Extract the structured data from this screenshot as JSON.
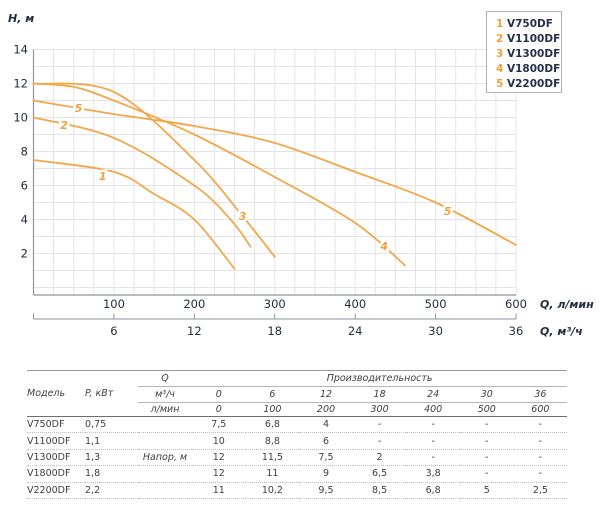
{
  "chart_data": {
    "type": "line",
    "ylabel": "H, м",
    "xlabel": "Q, л/мин",
    "x2label": "Q, м³/ч",
    "xlim": [
      0,
      600
    ],
    "ylim": [
      0,
      14
    ],
    "y_ticks": [
      2,
      4,
      6,
      8,
      10,
      12,
      14
    ],
    "x_ticks": [
      100,
      200,
      300,
      400,
      500,
      600
    ],
    "x2_ticks": [
      6,
      12,
      18,
      24,
      30,
      36
    ],
    "grid": {
      "on": true,
      "x_step_lmin": 25,
      "y_step_m": 1
    },
    "legend_position": "top-right",
    "colors": {
      "curve": "#f3a74b",
      "curve_label": "#f0a03e",
      "text": "#242e3f",
      "grid": "#e4e4e6",
      "axis": "#8f9499"
    },
    "series": [
      {
        "name": "V750DF",
        "curve_label": "1",
        "points": [
          [
            0,
            7.5
          ],
          [
            100,
            6.8
          ],
          [
            150,
            5.5
          ],
          [
            200,
            4
          ],
          [
            250,
            1.1
          ]
        ],
        "labels_at": [
          [
            86,
            6.55
          ]
        ]
      },
      {
        "name": "V1100DF",
        "curve_label": "2",
        "points": [
          [
            0,
            10
          ],
          [
            100,
            8.8
          ],
          [
            200,
            6
          ],
          [
            245,
            4
          ],
          [
            270,
            2.4
          ]
        ],
        "labels_at": [
          [
            38,
            9.55
          ]
        ]
      },
      {
        "name": "V1300DF",
        "curve_label": "3",
        "points": [
          [
            0,
            12
          ],
          [
            100,
            11.5
          ],
          [
            200,
            7.5
          ],
          [
            260,
            4.2
          ],
          [
            300,
            1.8
          ]
        ],
        "labels_at": [
          [
            260,
            4.2
          ]
        ]
      },
      {
        "name": "V1800DF",
        "curve_label": "4",
        "points": [
          [
            0,
            12
          ],
          [
            50,
            11.8
          ],
          [
            100,
            11
          ],
          [
            200,
            9
          ],
          [
            300,
            6.5
          ],
          [
            400,
            3.8
          ],
          [
            462,
            1.3
          ]
        ],
        "labels_at": [
          [
            436,
            2.45
          ]
        ]
      },
      {
        "name": "V2200DF",
        "curve_label": "5",
        "points": [
          [
            0,
            11
          ],
          [
            100,
            10.2
          ],
          [
            200,
            9.5
          ],
          [
            300,
            8.5
          ],
          [
            400,
            6.8
          ],
          [
            500,
            5
          ],
          [
            600,
            2.5
          ]
        ],
        "labels_at": [
          [
            56,
            10.55
          ],
          [
            515,
            4.5
          ]
        ]
      }
    ],
    "legend": [
      {
        "num": "1",
        "label": "V750DF"
      },
      {
        "num": "2",
        "label": "V1100DF"
      },
      {
        "num": "3",
        "label": "V1300DF"
      },
      {
        "num": "4",
        "label": "V1800DF"
      },
      {
        "num": "5",
        "label": "V2200DF"
      }
    ]
  },
  "table": {
    "headers": {
      "model": "Модель",
      "power": "P, кВт",
      "q": "Q",
      "performance": "Производительность",
      "unit_row1": "м³/ч",
      "unit_row2": "л/мин",
      "m3h_values": [
        "0",
        "6",
        "12",
        "18",
        "24",
        "30",
        "36"
      ],
      "lmin_values": [
        "0",
        "100",
        "200",
        "300",
        "400",
        "500",
        "600"
      ],
      "napor": "Напор, м"
    },
    "rows": [
      {
        "model": "V750DF",
        "power": "0,75",
        "values": [
          "7,5",
          "6,8",
          "4",
          "-",
          "-",
          "-",
          "-"
        ]
      },
      {
        "model": "V1100DF",
        "power": "1,1",
        "values": [
          "10",
          "8,8",
          "6",
          "-",
          "-",
          "-",
          "-"
        ]
      },
      {
        "model": "V1300DF",
        "power": "1,3",
        "values": [
          "12",
          "11,5",
          "7,5",
          "2",
          "-",
          "-",
          "-"
        ]
      },
      {
        "model": "V1800DF",
        "power": "1,8",
        "values": [
          "12",
          "11",
          "9",
          "6,5",
          "3,8",
          "-",
          "-"
        ]
      },
      {
        "model": "V2200DF",
        "power": "2,2",
        "values": [
          "11",
          "10,2",
          "9,5",
          "8,5",
          "6,8",
          "5",
          "2,5"
        ]
      }
    ]
  }
}
